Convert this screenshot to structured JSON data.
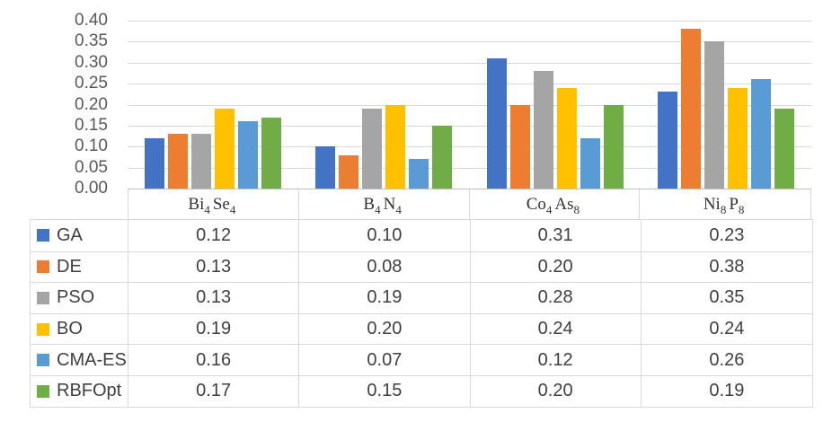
{
  "chart_data": {
    "type": "bar",
    "title": "",
    "xlabel": "",
    "ylabel": "",
    "categories": [
      "Bi₄Se₄",
      "B₄N₄",
      "Co₄As₈",
      "Ni₈P₈"
    ],
    "categories_rich": [
      [
        {
          "t": "Bi",
          "s": "4"
        },
        {
          "t": "Se",
          "s": "4"
        }
      ],
      [
        {
          "t": "B",
          "s": "4"
        },
        {
          "t": "N",
          "s": "4"
        }
      ],
      [
        {
          "t": "Co",
          "s": "4"
        },
        {
          "t": "As",
          "s": "8"
        }
      ],
      [
        {
          "t": "Ni",
          "s": "8"
        },
        {
          "t": "P",
          "s": "8"
        }
      ]
    ],
    "series": [
      {
        "name": "GA",
        "color": "#4472C4",
        "values": [
          0.12,
          0.1,
          0.31,
          0.23
        ]
      },
      {
        "name": "DE",
        "color": "#ED7D31",
        "values": [
          0.13,
          0.08,
          0.2,
          0.38
        ]
      },
      {
        "name": "PSO",
        "color": "#A5A5A5",
        "values": [
          0.13,
          0.19,
          0.28,
          0.35
        ]
      },
      {
        "name": "BO",
        "color": "#FFC000",
        "values": [
          0.19,
          0.2,
          0.24,
          0.24
        ]
      },
      {
        "name": "CMA-ES",
        "color": "#5B9BD5",
        "values": [
          0.16,
          0.07,
          0.12,
          0.26
        ]
      },
      {
        "name": "RBFOpt",
        "color": "#70AD47",
        "values": [
          0.17,
          0.15,
          0.2,
          0.19
        ]
      }
    ],
    "ylim": [
      0,
      0.4
    ],
    "ytick_step": 0.05,
    "ytick_labels": [
      "0.40",
      "0.35",
      "0.30",
      "0.25",
      "0.20",
      "0.15",
      "0.10",
      "0.05",
      "0.00"
    ],
    "value_format_decimals": 2,
    "grid": true,
    "legend_position": "table-left-column"
  },
  "style_colors": {
    "background": "#ffffff",
    "gridline": "#d9d9d9",
    "table_border": "#d9d9d9",
    "axis_line": "#bfbfbf",
    "axis_label_text": "#595959",
    "table_text": "#404040",
    "category_text": "#333333"
  }
}
